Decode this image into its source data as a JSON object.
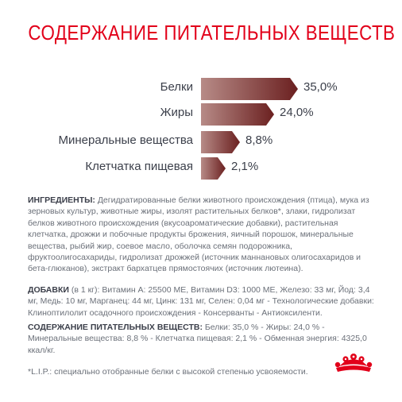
{
  "title": "СОДЕРЖАНИЕ ПИТАТЕЛЬНЫХ ВЕЩЕСТВ",
  "nutrients": [
    {
      "label": "Белки",
      "value_text": "35,0%",
      "value": 35.0
    },
    {
      "label": "Жиры",
      "value_text": "24,0%",
      "value": 24.0
    },
    {
      "label": "Минеральные вещества",
      "value_text": "8,8%",
      "value": 8.8
    },
    {
      "label": "Клетчатка пищевая",
      "value_text": "2,1%",
      "value": 2.1
    }
  ],
  "ingredients": {
    "heading": "ИНГРЕДИЕНТЫ:",
    "text": " Дегидратированные белки животного происхождения (птица), мука из зерновых культур, животные жиры, изолят растительных белков*, злаки, гидролизат белков животного происхождения (вкусоароматические добавки), растительная клетчатка, дрожжи и побочные продукты брожения, яичный порошок, минеральные вещества, рыбий жир, соевое масло, оболочка семян подорожника, фруктоолигосахариды, гидролизат дрожжей (источник маннановых олигосахаридов и бета-глюканов), экстракт бархатцев прямостоячих (источник лютеина)."
  },
  "additives": {
    "heading": "ДОБАВКИ",
    "text": " (в 1 кг): Витамин А: 25500 МЕ, Витамин D3: 1000 МЕ, Железо: 33 мг, Йод: 3,4 мг, Медь: 10 мг, Марганец: 44 мг, Цинк: 131 мг, Селен: 0,04 мг - Технологические добавки: Клиноптилолит осадочного происхождения - Консерванты - Антиоксиленти."
  },
  "nutrition": {
    "heading": "СОДЕРЖАНИЕ ПИТАТЕЛЬНЫХ ВЕЩЕСТВ:",
    "text": " Белки: 35,0 % - Жиры: 24,0 % - Минеральные вещества: 8,8 % - Клетчатка пищевая: 2,1 % - Обменная энергия: 4325,0 ккал/кг."
  },
  "footnote": "*L.I.P.: специально отобранные белки с высокой степенью усвояемости.",
  "colors": {
    "title": "#e2001a",
    "bar_start": "#b78b87",
    "bar_end": "#6b2020",
    "text_dark": "#3b3f4a",
    "text_body": "#6b7079",
    "logo": "#e2001a"
  },
  "logo_icon": "crown-icon"
}
